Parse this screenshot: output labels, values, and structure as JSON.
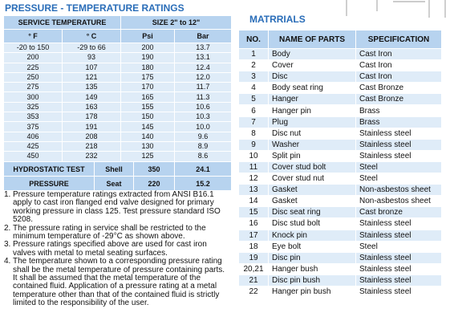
{
  "left": {
    "title": "PRESSURE - TEMPERATURE RATINGS",
    "table": {
      "header": [
        "SERVICE TEMPERATURE",
        "SIZE 2\" to 12\""
      ],
      "subheader": [
        "° F",
        "° C",
        "Psi",
        "Bar"
      ],
      "rows": [
        [
          "-20 to 150",
          "-29 to 66",
          "200",
          "13.7"
        ],
        [
          "200",
          "93",
          "190",
          "13.1"
        ],
        [
          "225",
          "107",
          "180",
          "12.4"
        ],
        [
          "250",
          "121",
          "175",
          "12.0"
        ],
        [
          "275",
          "135",
          "170",
          "11.7"
        ],
        [
          "300",
          "149",
          "165",
          "11.3"
        ],
        [
          "325",
          "163",
          "155",
          "10.6"
        ],
        [
          "353",
          "178",
          "150",
          "10.3"
        ],
        [
          "375",
          "191",
          "145",
          "10.0"
        ],
        [
          "406",
          "208",
          "140",
          "9.6"
        ],
        [
          "425",
          "218",
          "130",
          "8.9"
        ],
        [
          "450",
          "232",
          "125",
          "8.6"
        ]
      ]
    },
    "test_rows": [
      [
        "HYDROSTATIC TEST",
        "Shell",
        "350",
        "24.1"
      ],
      [
        "PRESSURE",
        "Seat",
        "220",
        "15.2"
      ]
    ],
    "notes": [
      {
        "num": "1.",
        "text": "Pressure temperature ratings extracted from ANSI B16.1 apply to cast iron flanged end valve designed for primary working pressure in class 125. Test pressure standard ISO 5208."
      },
      {
        "num": "2.",
        "text": "The pressure rating in service shall be restricted to the minimum temperature of -29°C as shown above."
      },
      {
        "num": "3.",
        "text": "Pressure ratings specified above are used for cast iron valves with metal to metal seating surfaces."
      },
      {
        "num": "4.",
        "text": "The temperature shown to a corresponding pressure rating shall be the metal temperature of pressure containing parts. It shall be assumed that the metal temperature of the contained fluid. Application of a pressure rating at a metal temperature other than that of the contained fluid is strictly limited to the responsibility of the user."
      }
    ]
  },
  "right": {
    "title": "MATRRIALS",
    "table": {
      "header": [
        "NO.",
        "NAME OF PARTS",
        "SPECIFICATION"
      ],
      "rows": [
        [
          "1",
          "Body",
          "Cast Iron"
        ],
        [
          "2",
          "Cover",
          "Cast Iron"
        ],
        [
          "3",
          "Disc",
          "Cast Iron"
        ],
        [
          "4",
          "Body seat ring",
          "Cast Bronze"
        ],
        [
          "5",
          "Hanger",
          "Cast Bronze"
        ],
        [
          "6",
          "Hanger pin",
          "Brass"
        ],
        [
          "7",
          "Plug",
          "Brass"
        ],
        [
          "8",
          "Disc nut",
          "Stainless steel"
        ],
        [
          "9",
          "Washer",
          "Stainless steel"
        ],
        [
          "10",
          "Split pin",
          "Stainless steel"
        ],
        [
          "11",
          "Cover stud bolt",
          "Steel"
        ],
        [
          "12",
          "Cover stud nut",
          "Steel"
        ],
        [
          "13",
          "Gasket",
          "Non-asbestos sheet"
        ],
        [
          "14",
          "Gasket",
          "Non-asbestos sheet"
        ],
        [
          "15",
          "Disc seat ring",
          "Cast bronze"
        ],
        [
          "16",
          "Disc stud bolt",
          "Stainless steel"
        ],
        [
          "17",
          "Knock pin",
          "Stainless steel"
        ],
        [
          "18",
          "Eye bolt",
          "Steel"
        ],
        [
          "19",
          "Disc pin",
          "Stainless steel"
        ],
        [
          "20,21",
          "Hanger bush",
          "Stainless steel"
        ],
        [
          "21",
          "Disc pin bush",
          "Stainless steel"
        ],
        [
          "22",
          "Hanger pin bush",
          "Stainless steel"
        ]
      ]
    }
  }
}
